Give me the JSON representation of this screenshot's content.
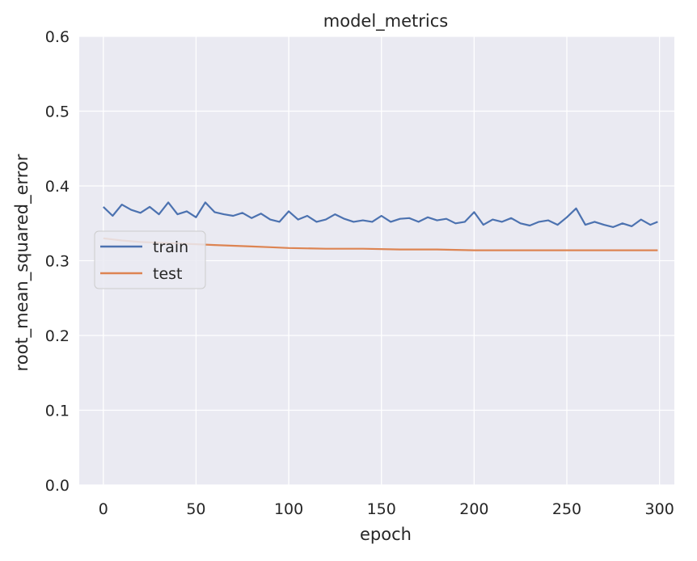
{
  "chart_data": {
    "type": "line",
    "title": "model_metrics",
    "xlabel": "epoch",
    "ylabel": "root_mean_squared_error",
    "xlim": [
      -13,
      308
    ],
    "ylim": [
      0.0,
      0.6
    ],
    "xticks": [
      0,
      50,
      100,
      150,
      200,
      250,
      300
    ],
    "xtick_labels": [
      "0",
      "50",
      "100",
      "150",
      "200",
      "250",
      "300"
    ],
    "yticks": [
      0.0,
      0.1,
      0.2,
      0.3,
      0.4,
      0.5,
      0.6
    ],
    "ytick_labels": [
      "0.0",
      "0.1",
      "0.2",
      "0.3",
      "0.4",
      "0.5",
      "0.6"
    ],
    "grid": true,
    "legend_position": "center-left",
    "background_color": "#eaeaf2",
    "grid_color": "#ffffff",
    "series": [
      {
        "name": "train",
        "color": "#4c72b0",
        "x": [
          0,
          5,
          10,
          15,
          20,
          25,
          30,
          35,
          40,
          45,
          50,
          55,
          60,
          65,
          70,
          75,
          80,
          85,
          90,
          95,
          100,
          105,
          110,
          115,
          120,
          125,
          130,
          135,
          140,
          145,
          150,
          155,
          160,
          165,
          170,
          175,
          180,
          185,
          190,
          195,
          200,
          205,
          210,
          215,
          220,
          225,
          230,
          235,
          240,
          245,
          250,
          255,
          260,
          265,
          270,
          275,
          280,
          285,
          290,
          295,
          299
        ],
        "values": [
          0.372,
          0.36,
          0.375,
          0.368,
          0.364,
          0.372,
          0.362,
          0.378,
          0.362,
          0.366,
          0.358,
          0.378,
          0.365,
          0.362,
          0.36,
          0.364,
          0.357,
          0.363,
          0.355,
          0.352,
          0.366,
          0.355,
          0.36,
          0.352,
          0.355,
          0.362,
          0.356,
          0.352,
          0.354,
          0.352,
          0.36,
          0.352,
          0.356,
          0.357,
          0.352,
          0.358,
          0.354,
          0.356,
          0.35,
          0.352,
          0.365,
          0.348,
          0.355,
          0.352,
          0.357,
          0.35,
          0.347,
          0.352,
          0.354,
          0.348,
          0.358,
          0.37,
          0.348,
          0.352,
          0.348,
          0.345,
          0.35,
          0.346,
          0.355,
          0.348,
          0.352
        ]
      },
      {
        "name": "test",
        "color": "#dd8452",
        "x": [
          0,
          10,
          20,
          30,
          40,
          50,
          60,
          70,
          80,
          90,
          100,
          120,
          140,
          160,
          180,
          200,
          220,
          240,
          260,
          280,
          299
        ],
        "values": [
          0.33,
          0.327,
          0.325,
          0.324,
          0.323,
          0.322,
          0.321,
          0.32,
          0.319,
          0.318,
          0.317,
          0.316,
          0.316,
          0.315,
          0.315,
          0.314,
          0.314,
          0.314,
          0.314,
          0.314,
          0.314
        ]
      }
    ]
  }
}
